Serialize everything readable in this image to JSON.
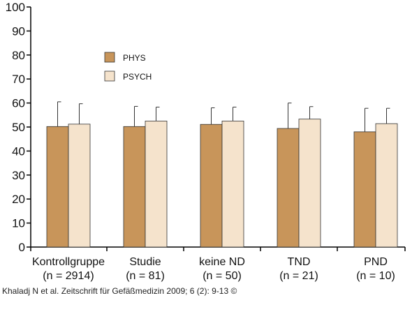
{
  "chart_data": {
    "type": "bar",
    "categories": [
      "Kontrollgruppe",
      "Studie",
      "keine ND",
      "TND",
      "PND"
    ],
    "category_sublabels": [
      "(n = 2914)",
      "(n = 81)",
      "(n = 50)",
      "(n = 21)",
      "(n = 10)"
    ],
    "series": [
      {
        "name": "PHYS",
        "color": "#c8955a",
        "values": [
          50.2,
          50.2,
          51.1,
          49.4,
          48.0
        ],
        "error_upper": [
          60.5,
          58.6,
          58.0,
          60.0,
          57.8
        ]
      },
      {
        "name": "PSYCH",
        "color": "#f5e3cc",
        "values": [
          51.2,
          52.5,
          52.5,
          53.3,
          51.4
        ],
        "error_upper": [
          59.7,
          58.3,
          58.3,
          58.5,
          57.8
        ]
      }
    ],
    "yticks": [
      0,
      10,
      20,
      30,
      40,
      50,
      60,
      70,
      80,
      90,
      100
    ],
    "ylim": [
      0,
      100
    ],
    "title": "",
    "xlabel": "",
    "ylabel": "",
    "legend_position": "top-left",
    "grid": false
  },
  "caption": "Khaladj N et al. Zeitschrift für Gefäßmedizin 2009; 6 (2): 9-13 ©"
}
